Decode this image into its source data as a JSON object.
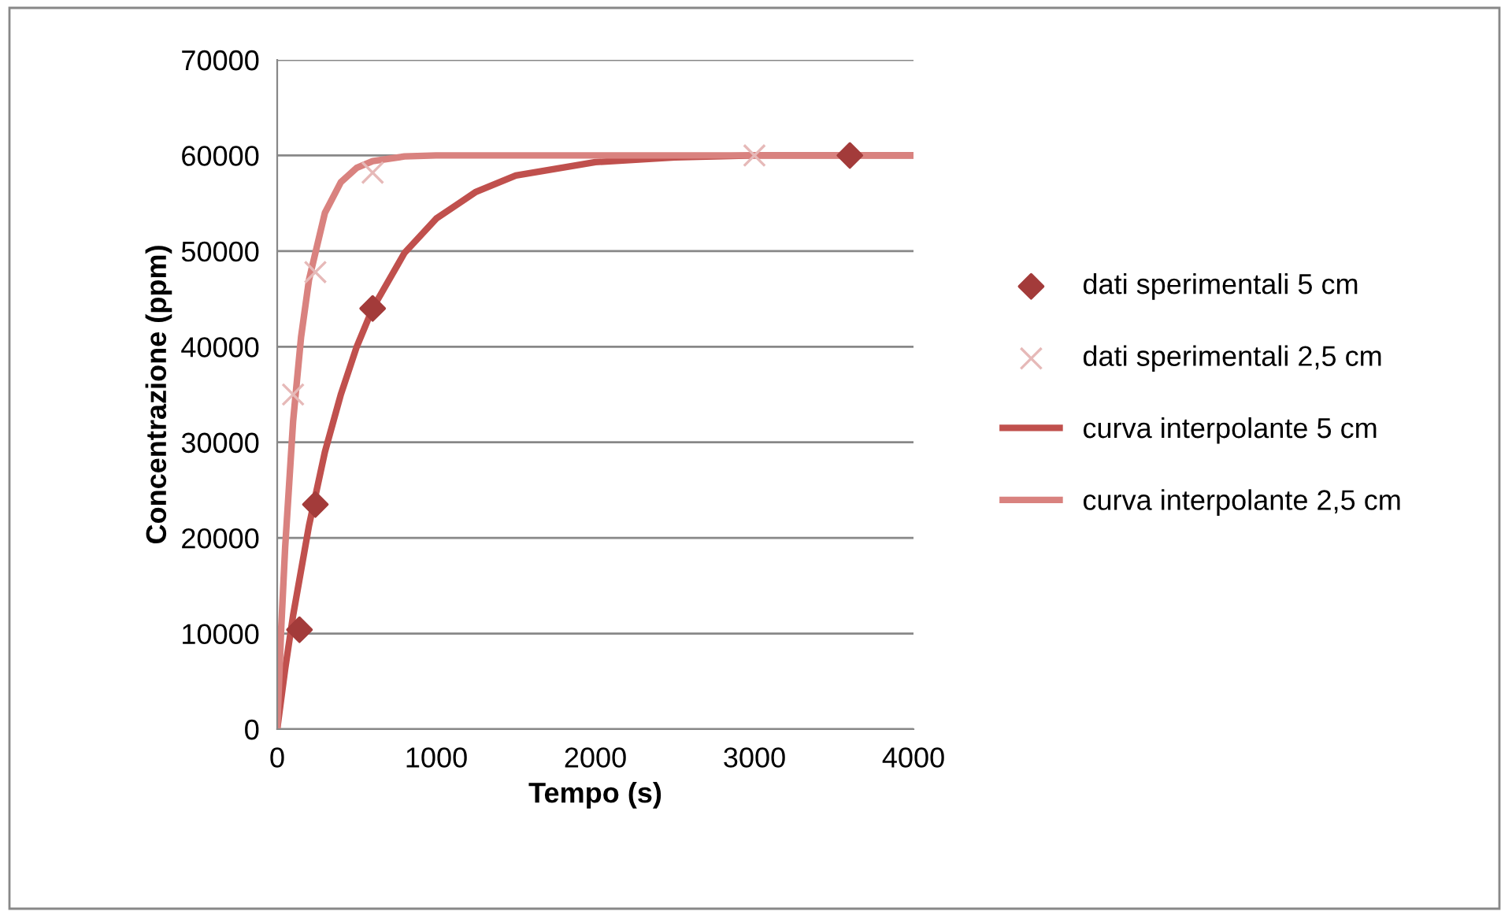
{
  "chart_data": {
    "type": "scatter",
    "xlabel": "Tempo (s)",
    "ylabel": "Concentrazione (ppm)",
    "xlim": [
      0,
      4000
    ],
    "xticks": [
      0,
      1000,
      2000,
      3000,
      4000
    ],
    "ylim": [
      0,
      70000
    ],
    "yticks": [
      0,
      10000,
      20000,
      30000,
      40000,
      50000,
      60000,
      70000
    ],
    "grid": "y",
    "legend": "right",
    "series": [
      {
        "name": "dati sperimentali 5 cm",
        "marker": "diamond",
        "color": "#a33b3a",
        "x": [
          140,
          240,
          600,
          3600
        ],
        "values": [
          10400,
          23500,
          44000,
          60000
        ]
      },
      {
        "name": "dati sperimentali 2,5 cm",
        "marker": "cross",
        "color": "#e6b9b8",
        "x": [
          100,
          240,
          600,
          3000
        ],
        "values": [
          35000,
          47800,
          58200,
          60000
        ]
      },
      {
        "name": "curva interpolante 5 cm",
        "type": "line",
        "marker": "none",
        "color": "#c0504d",
        "x": [
          0,
          50,
          100,
          200,
          300,
          400,
          500,
          600,
          800,
          1000,
          1250,
          1500,
          2000,
          2500,
          3000,
          4000
        ],
        "values": [
          0,
          6300,
          11900,
          21300,
          29000,
          35000,
          40000,
          44000,
          49800,
          53400,
          56200,
          57900,
          59300,
          59800,
          60000,
          60000
        ]
      },
      {
        "name": "curva interpolante 2,5 cm",
        "type": "line",
        "marker": "none",
        "color": "#d9827f",
        "x": [
          0,
          25,
          50,
          100,
          150,
          200,
          300,
          400,
          500,
          600,
          800,
          1000,
          4000
        ],
        "values": [
          0,
          10500,
          19000,
          32200,
          41000,
          47000,
          54000,
          57200,
          58700,
          59400,
          59900,
          60000,
          60000
        ]
      }
    ]
  }
}
